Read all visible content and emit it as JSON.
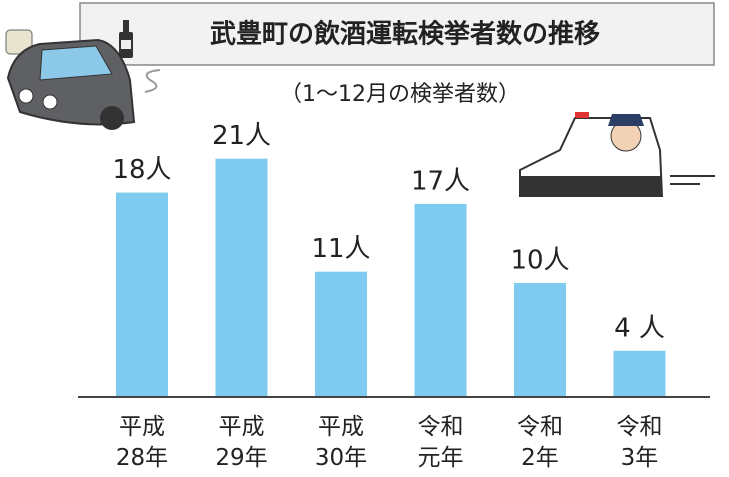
{
  "chart_data": {
    "type": "bar",
    "title": "武豊町の飲酒運転検挙者数の推移",
    "subtitle": "（1～12月の検挙者数）",
    "categories": [
      "平成\n28年",
      "平成\n29年",
      "平成\n30年",
      "令和\n元年",
      "令和\n2年",
      "令和\n3年"
    ],
    "values": [
      18,
      21,
      11,
      17,
      10,
      4
    ],
    "value_labels": [
      "18人",
      "21人",
      "11人",
      "17人",
      "10人",
      "4 人"
    ],
    "color": "#7ecbef"
  }
}
